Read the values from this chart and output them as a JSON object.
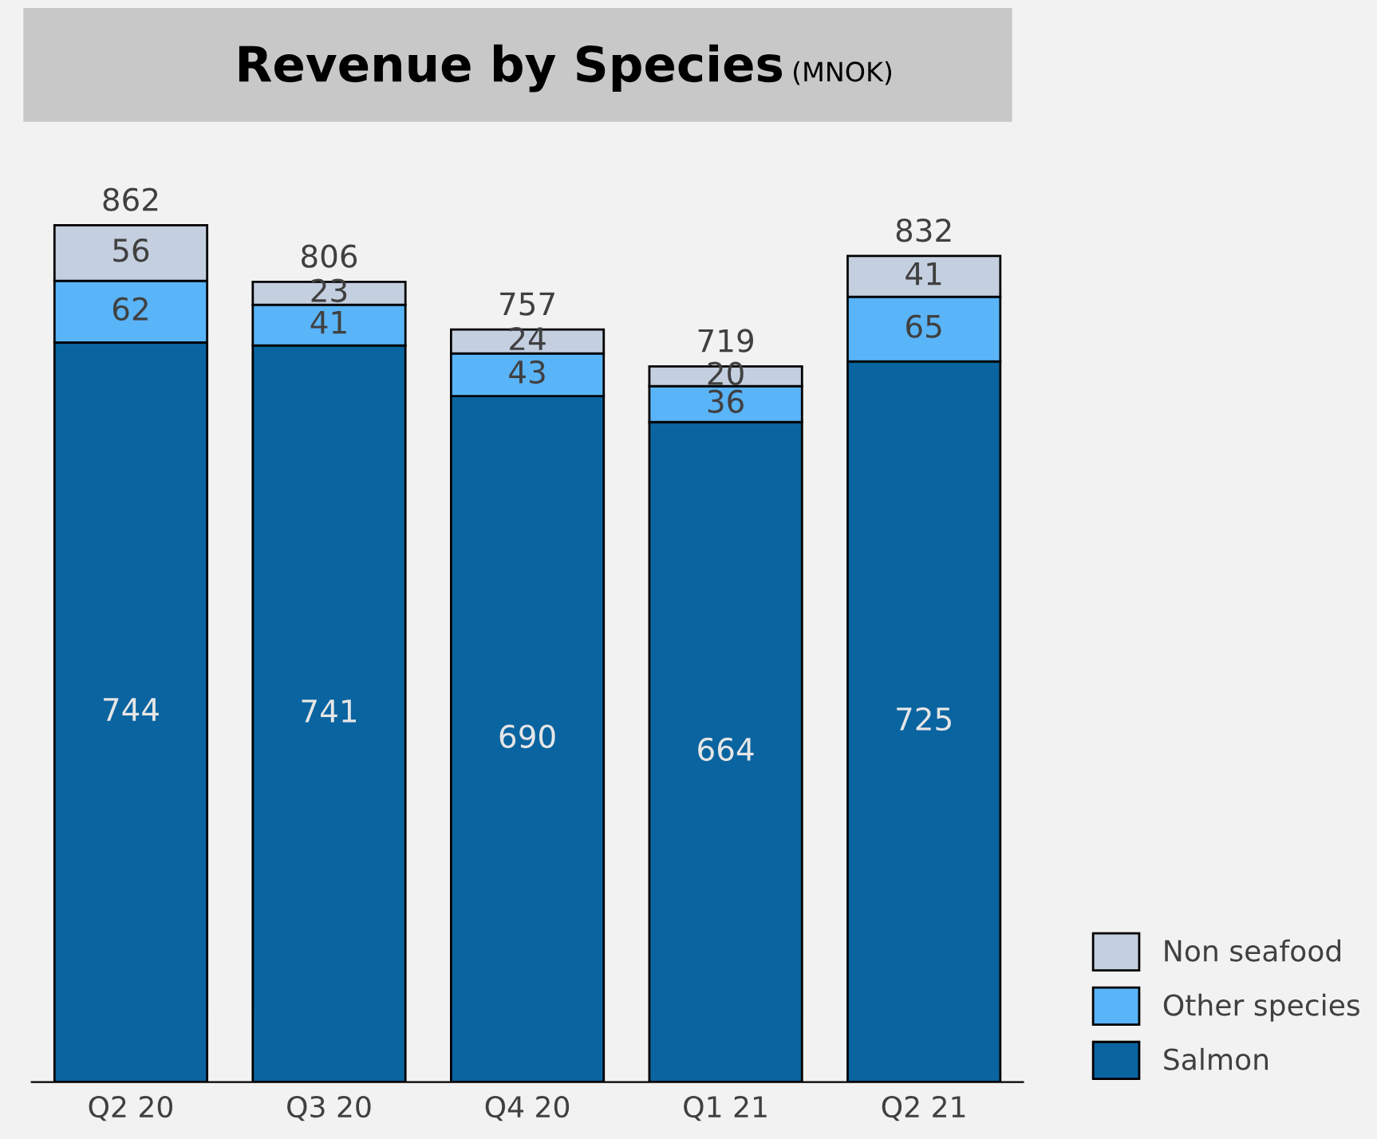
{
  "chart_data": {
    "type": "bar",
    "title": "Revenue by Species",
    "subtitle": "(MNOK)",
    "stacked": true,
    "data_labels": true,
    "legend": "bottom right",
    "grid": false,
    "categories": [
      "Q2 20",
      "Q3 20",
      "Q4 20",
      "Q1 21",
      "Q2 21"
    ],
    "series": [
      {
        "name": "Salmon",
        "color": "#0a64a0",
        "values": [
          744,
          741,
          690,
          664,
          725
        ]
      },
      {
        "name": "Other species",
        "color": "#5ab4f8",
        "values": [
          62,
          41,
          43,
          36,
          65
        ]
      },
      {
        "name": "Non seafood",
        "color": "#c4cfe0",
        "values": [
          56,
          23,
          24,
          20,
          41
        ]
      }
    ],
    "totals": [
      "862",
      "806",
      "757",
      "719",
      "832"
    ]
  }
}
